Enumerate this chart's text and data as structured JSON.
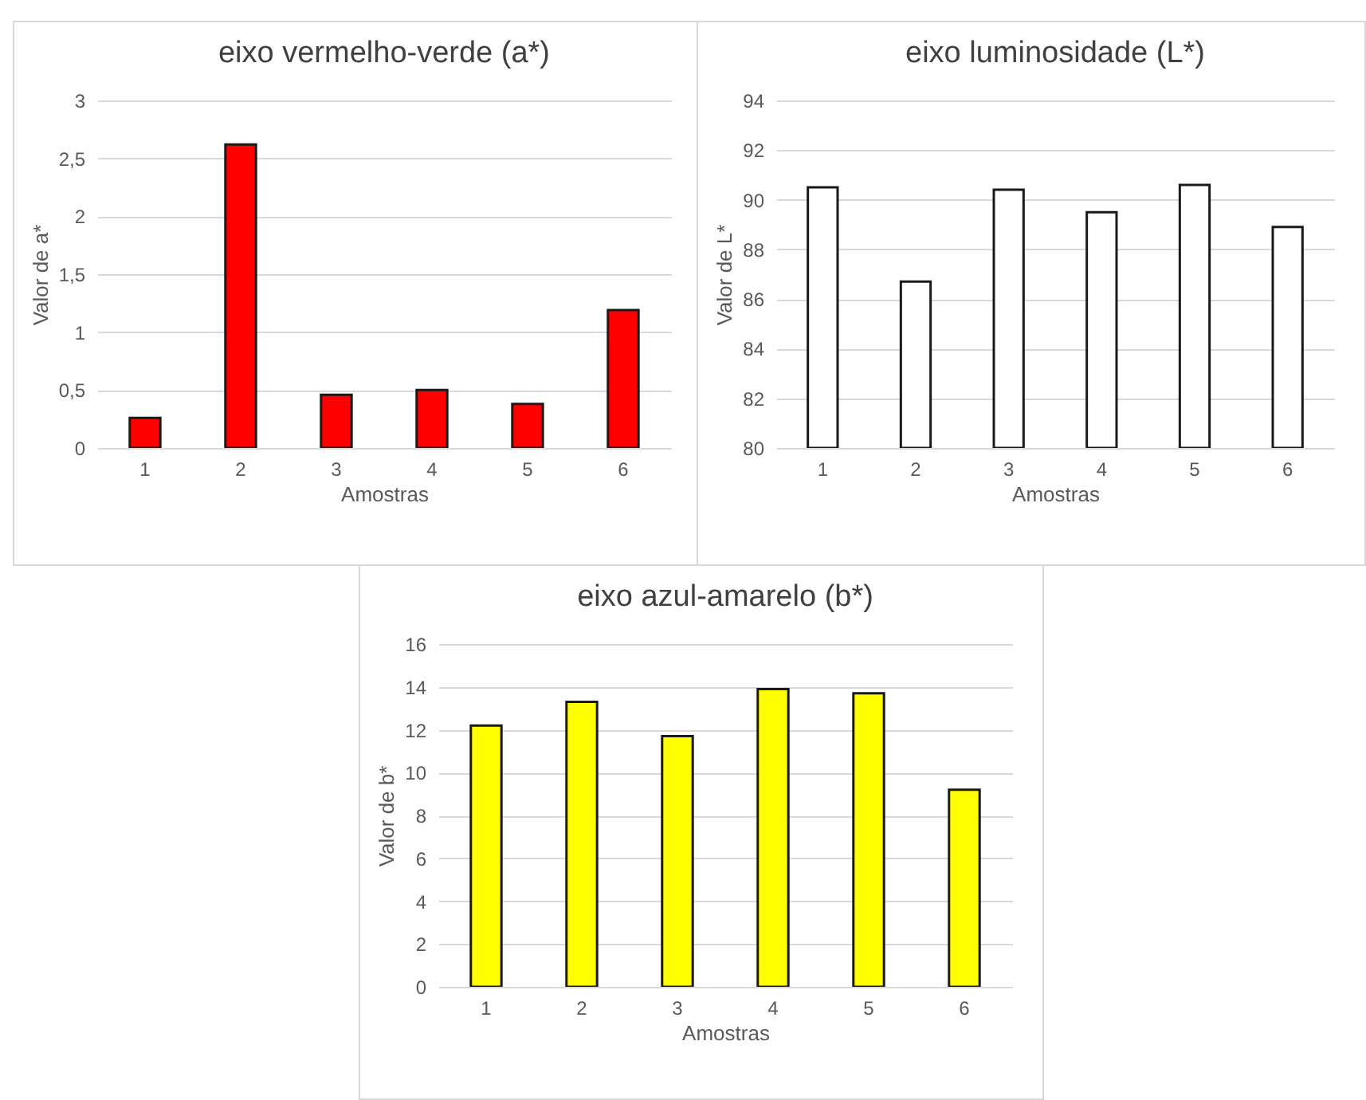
{
  "chart_data": [
    {
      "type": "bar",
      "title": "eixo vermelho-verde (a*)",
      "xlabel": "Amostras",
      "ylabel": "Valor de a*",
      "categories": [
        "1",
        "2",
        "3",
        "4",
        "5",
        "6"
      ],
      "series": [
        {
          "color": "#ff0000",
          "values": [
            0.26,
            2.62,
            0.46,
            0.5,
            0.38,
            1.19
          ]
        }
      ],
      "ylim": [
        0,
        3
      ],
      "yticks": [
        0,
        {
          "value": 0.5,
          "label": "0,5"
        },
        1,
        {
          "value": 1.5,
          "label": "1,5"
        },
        2,
        {
          "value": 2.5,
          "label": "2,5"
        },
        3
      ],
      "grid": "y",
      "legend": false
    },
    {
      "type": "bar",
      "title": "eixo luminosidade (L*)",
      "xlabel": "Amostras",
      "ylabel": "Valor de L*",
      "categories": [
        "1",
        "2",
        "3",
        "4",
        "5",
        "6"
      ],
      "series": [
        {
          "color": "#ffffff",
          "values": [
            90.5,
            86.7,
            90.4,
            89.5,
            90.6,
            88.9
          ]
        }
      ],
      "ylim": [
        80,
        94
      ],
      "yticks": [
        80,
        82,
        84,
        86,
        88,
        90,
        92,
        94
      ],
      "grid": "y",
      "legend": false
    },
    {
      "type": "bar",
      "title": "eixo azul-amarelo (b*)",
      "xlabel": "Amostras",
      "ylabel": "Valor de b*",
      "categories": [
        "1",
        "2",
        "3",
        "4",
        "5",
        "6"
      ],
      "series": [
        {
          "color": "#ffff00",
          "values": [
            12.2,
            13.3,
            11.7,
            13.9,
            13.7,
            9.2
          ]
        }
      ],
      "ylim": [
        0,
        16
      ],
      "yticks": [
        0,
        2,
        4,
        6,
        8,
        10,
        12,
        14,
        16
      ],
      "grid": "y",
      "legend": false
    }
  ]
}
